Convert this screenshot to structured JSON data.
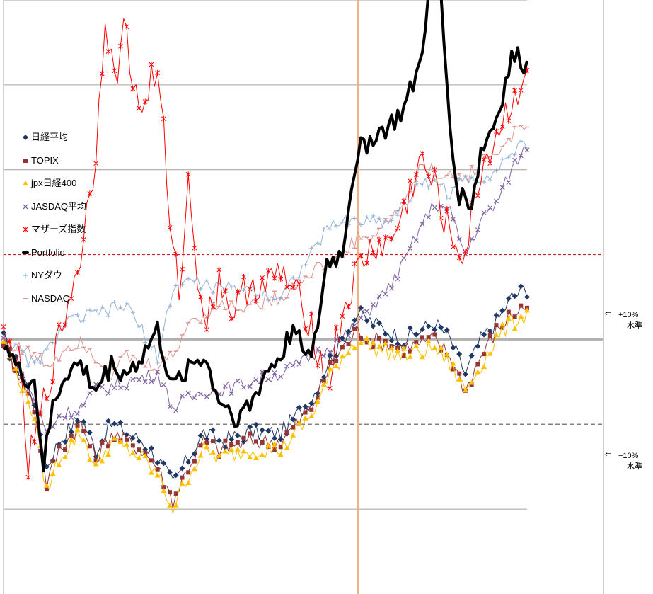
{
  "legend": [
    {
      "label": "日経平均",
      "color": "#1f3864",
      "marker": "diamond"
    },
    {
      "label": "TOPIX",
      "color": "#943634",
      "marker": "square"
    },
    {
      "label": "jpx日経400",
      "color": "#ffc000",
      "marker": "triangle"
    },
    {
      "label": "JASDAQ平均",
      "color": "#8064a2",
      "marker": "x"
    },
    {
      "label": "マザーズ指数",
      "color": "#ff0000",
      "marker": "star"
    },
    {
      "label": "Portfolio",
      "color": "#000000",
      "marker": "line"
    },
    {
      "label": "NYダウ",
      "color": "#95b3d7",
      "marker": "plus"
    },
    {
      "label": "NASDAQ",
      "color": "#d99694",
      "marker": "dash"
    }
  ],
  "levels": {
    "plus": {
      "arrow": "⇐",
      "value": "+10%",
      "suffix": "水準"
    },
    "minus": {
      "arrow": "⇐",
      "value": "−10%",
      "suffix": "水準"
    }
  },
  "chart_data": {
    "type": "line",
    "title": "",
    "xlabel": "",
    "ylabel": "",
    "x_points": 170,
    "baseline": 0,
    "reference_lines": [
      {
        "label": "+10%",
        "value": 10,
        "style": "red dashed"
      },
      {
        "label": "−10%",
        "value": -10,
        "style": "grey dashed"
      }
    ],
    "vertical_marker_index": 115,
    "ylim": [
      -30,
      40
    ],
    "grid": true,
    "series": [
      {
        "name": "日経平均",
        "color": "#1f3864",
        "marker": "diamond",
        "anchors": [
          [
            0,
            0
          ],
          [
            10,
            -7
          ],
          [
            14,
            -15
          ],
          [
            18,
            -12
          ],
          [
            25,
            -9
          ],
          [
            30,
            -13
          ],
          [
            35,
            -10
          ],
          [
            45,
            -12
          ],
          [
            50,
            -14
          ],
          [
            55,
            -17
          ],
          [
            60,
            -14
          ],
          [
            65,
            -11
          ],
          [
            70,
            -12
          ],
          [
            80,
            -11
          ],
          [
            90,
            -11
          ],
          [
            95,
            -9
          ],
          [
            100,
            -7
          ],
          [
            105,
            -3
          ],
          [
            110,
            0
          ],
          [
            115,
            3
          ],
          [
            120,
            2
          ],
          [
            130,
            0
          ],
          [
            140,
            2
          ],
          [
            145,
            0
          ],
          [
            150,
            -4
          ],
          [
            155,
            0
          ],
          [
            160,
            2
          ],
          [
            165,
            5
          ],
          [
            170,
            6
          ]
        ]
      },
      {
        "name": "TOPIX",
        "color": "#943634",
        "marker": "square",
        "anchors": [
          [
            0,
            0
          ],
          [
            10,
            -8
          ],
          [
            14,
            -17
          ],
          [
            18,
            -13
          ],
          [
            25,
            -10
          ],
          [
            30,
            -14
          ],
          [
            35,
            -11
          ],
          [
            45,
            -13
          ],
          [
            50,
            -15
          ],
          [
            55,
            -19
          ],
          [
            60,
            -15
          ],
          [
            65,
            -12
          ],
          [
            70,
            -13
          ],
          [
            80,
            -12
          ],
          [
            90,
            -12
          ],
          [
            95,
            -10
          ],
          [
            100,
            -8
          ],
          [
            105,
            -4
          ],
          [
            110,
            -1
          ],
          [
            115,
            1
          ],
          [
            120,
            0
          ],
          [
            130,
            -1
          ],
          [
            140,
            0
          ],
          [
            145,
            -2
          ],
          [
            150,
            -6
          ],
          [
            155,
            -2
          ],
          [
            160,
            1
          ],
          [
            165,
            3
          ],
          [
            170,
            4
          ]
        ]
      },
      {
        "name": "jpx日経400",
        "color": "#ffc000",
        "marker": "triangle",
        "anchors": [
          [
            0,
            0
          ],
          [
            10,
            -9
          ],
          [
            14,
            -18
          ],
          [
            18,
            -14
          ],
          [
            25,
            -11
          ],
          [
            30,
            -15
          ],
          [
            35,
            -12
          ],
          [
            45,
            -14
          ],
          [
            50,
            -16
          ],
          [
            55,
            -20
          ],
          [
            60,
            -16
          ],
          [
            65,
            -13
          ],
          [
            70,
            -14
          ],
          [
            80,
            -13
          ],
          [
            90,
            -13
          ],
          [
            95,
            -11
          ],
          [
            100,
            -9
          ],
          [
            105,
            -5
          ],
          [
            110,
            -2
          ],
          [
            115,
            0
          ],
          [
            120,
            -1
          ],
          [
            130,
            -2
          ],
          [
            140,
            -1
          ],
          [
            145,
            -3
          ],
          [
            150,
            -6
          ],
          [
            155,
            -3
          ],
          [
            160,
            0
          ],
          [
            165,
            2
          ],
          [
            170,
            3
          ]
        ]
      },
      {
        "name": "JASDAQ平均",
        "color": "#8064a2",
        "marker": "x",
        "anchors": [
          [
            0,
            0
          ],
          [
            10,
            -7
          ],
          [
            14,
            -11
          ],
          [
            18,
            -9
          ],
          [
            25,
            -8
          ],
          [
            30,
            -6
          ],
          [
            40,
            -5
          ],
          [
            50,
            -4
          ],
          [
            55,
            -8
          ],
          [
            60,
            -7
          ],
          [
            65,
            -6
          ],
          [
            70,
            -6
          ],
          [
            80,
            -5
          ],
          [
            90,
            -4
          ],
          [
            100,
            -2
          ],
          [
            110,
            0
          ],
          [
            115,
            2
          ],
          [
            120,
            4
          ],
          [
            125,
            6
          ],
          [
            130,
            9
          ],
          [
            135,
            13
          ],
          [
            140,
            16
          ],
          [
            145,
            15
          ],
          [
            150,
            10
          ],
          [
            155,
            14
          ],
          [
            160,
            16
          ],
          [
            165,
            20
          ],
          [
            170,
            23
          ]
        ]
      },
      {
        "name": "マザーズ指数",
        "color": "#ff0000",
        "marker": "star",
        "anchors": [
          [
            0,
            0
          ],
          [
            5,
            -3
          ],
          [
            8,
            -15
          ],
          [
            12,
            -9
          ],
          [
            16,
            -3
          ],
          [
            20,
            3
          ],
          [
            25,
            10
          ],
          [
            30,
            22
          ],
          [
            33,
            39
          ],
          [
            36,
            30
          ],
          [
            40,
            38
          ],
          [
            42,
            29
          ],
          [
            45,
            27
          ],
          [
            48,
            31
          ],
          [
            51,
            30
          ],
          [
            54,
            12
          ],
          [
            57,
            6
          ],
          [
            60,
            18
          ],
          [
            63,
            8
          ],
          [
            66,
            2
          ],
          [
            70,
            7
          ],
          [
            75,
            3
          ],
          [
            80,
            7
          ],
          [
            85,
            6
          ],
          [
            90,
            8
          ],
          [
            95,
            5
          ],
          [
            100,
            2
          ],
          [
            105,
            -6
          ],
          [
            110,
            3
          ],
          [
            115,
            8
          ],
          [
            120,
            11
          ],
          [
            125,
            11
          ],
          [
            130,
            15
          ],
          [
            135,
            21
          ],
          [
            140,
            18
          ],
          [
            145,
            12
          ],
          [
            150,
            10
          ],
          [
            155,
            20
          ],
          [
            160,
            24
          ],
          [
            165,
            28
          ],
          [
            170,
            32
          ]
        ]
      },
      {
        "name": "Portfolio",
        "color": "#000000",
        "marker": "line",
        "anchors": [
          [
            0,
            0
          ],
          [
            5,
            -4
          ],
          [
            10,
            -5
          ],
          [
            13,
            -15
          ],
          [
            16,
            -8
          ],
          [
            20,
            -4
          ],
          [
            25,
            -3
          ],
          [
            30,
            -6
          ],
          [
            35,
            -3
          ],
          [
            40,
            -4
          ],
          [
            45,
            -2
          ],
          [
            50,
            1
          ],
          [
            55,
            -6
          ],
          [
            60,
            -3
          ],
          [
            65,
            -2
          ],
          [
            70,
            -7
          ],
          [
            75,
            -9
          ],
          [
            80,
            -8
          ],
          [
            85,
            -4
          ],
          [
            90,
            -2
          ],
          [
            95,
            2
          ],
          [
            100,
            -3
          ],
          [
            105,
            9
          ],
          [
            110,
            10
          ],
          [
            112,
            16
          ],
          [
            115,
            22
          ],
          [
            120,
            24
          ],
          [
            125,
            25
          ],
          [
            130,
            27
          ],
          [
            135,
            32
          ],
          [
            139,
            43
          ],
          [
            142,
            40
          ],
          [
            145,
            25
          ],
          [
            148,
            17
          ],
          [
            152,
            16
          ],
          [
            155,
            22
          ],
          [
            160,
            26
          ],
          [
            165,
            33
          ],
          [
            168,
            33
          ],
          [
            170,
            32
          ]
        ]
      },
      {
        "name": "NYダウ",
        "color": "#95b3d7",
        "marker": "plus",
        "anchors": [
          [
            0,
            0
          ],
          [
            10,
            -3
          ],
          [
            15,
            -1
          ],
          [
            20,
            2
          ],
          [
            30,
            3
          ],
          [
            40,
            4
          ],
          [
            50,
            -2
          ],
          [
            55,
            6
          ],
          [
            60,
            7
          ],
          [
            70,
            6
          ],
          [
            80,
            6
          ],
          [
            90,
            5
          ],
          [
            100,
            10
          ],
          [
            105,
            13
          ],
          [
            110,
            14
          ],
          [
            115,
            14
          ],
          [
            120,
            14
          ],
          [
            125,
            14
          ],
          [
            130,
            16
          ],
          [
            135,
            18
          ],
          [
            140,
            19
          ],
          [
            145,
            17
          ],
          [
            150,
            19
          ],
          [
            155,
            19
          ],
          [
            160,
            20
          ],
          [
            165,
            22
          ],
          [
            170,
            23
          ]
        ]
      },
      {
        "name": "NASDAQ",
        "color": "#d99694",
        "marker": "dash",
        "anchors": [
          [
            0,
            0
          ],
          [
            10,
            -2
          ],
          [
            15,
            -3
          ],
          [
            20,
            -1
          ],
          [
            25,
            0
          ],
          [
            30,
            -2
          ],
          [
            35,
            -4
          ],
          [
            40,
            -2
          ],
          [
            45,
            -3
          ],
          [
            50,
            -3
          ],
          [
            55,
            -2
          ],
          [
            60,
            2
          ],
          [
            65,
            3
          ],
          [
            70,
            4
          ],
          [
            80,
            4
          ],
          [
            90,
            5
          ],
          [
            100,
            8
          ],
          [
            105,
            9
          ],
          [
            110,
            10
          ],
          [
            115,
            12
          ],
          [
            120,
            12
          ],
          [
            130,
            16
          ],
          [
            135,
            20
          ],
          [
            140,
            20
          ],
          [
            145,
            19
          ],
          [
            150,
            19
          ],
          [
            155,
            21
          ],
          [
            160,
            22
          ],
          [
            165,
            24
          ],
          [
            170,
            25
          ]
        ]
      }
    ]
  }
}
